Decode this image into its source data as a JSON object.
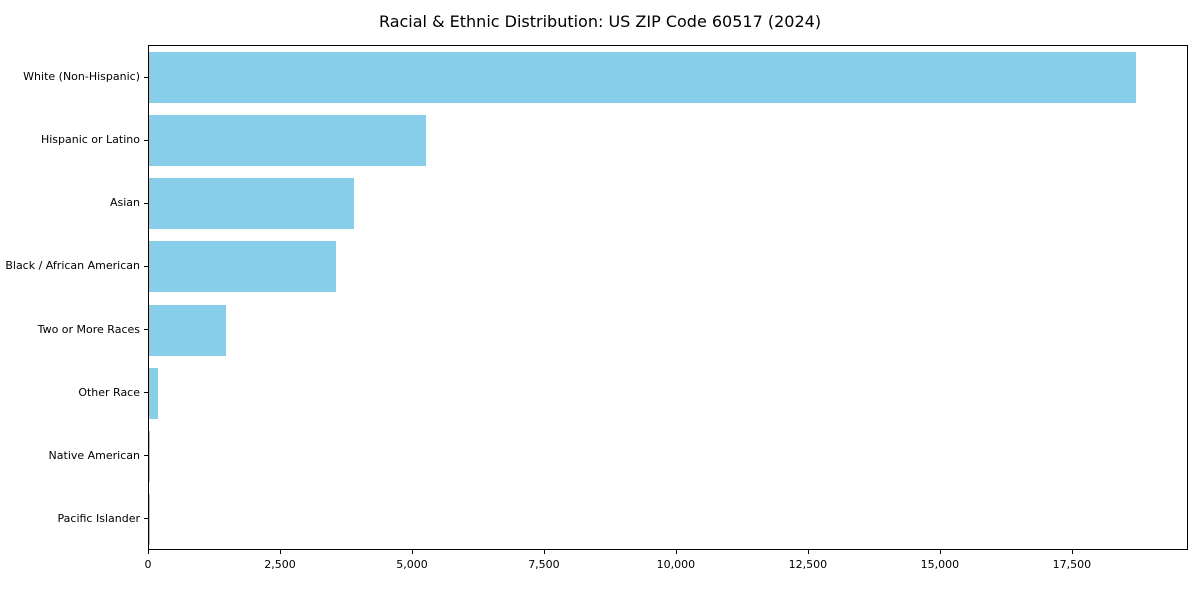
{
  "title": "Racial & Ethnic Distribution: US ZIP Code 60517 (2024)",
  "chart_data": {
    "type": "bar",
    "orientation": "horizontal",
    "title": "Racial & Ethnic Distribution: US ZIP Code 60517 (2024)",
    "categories": [
      "White (Non-Hispanic)",
      "Hispanic or Latino",
      "Asian",
      "Black / African American",
      "Two or More Races",
      "Other Race",
      "Native American",
      "Pacific Islander"
    ],
    "values": [
      18700,
      5250,
      3880,
      3540,
      1450,
      170,
      15,
      5
    ],
    "xlabel": "",
    "ylabel": "",
    "xlim": [
      0,
      19700
    ],
    "xticks": [
      0,
      2500,
      5000,
      7500,
      10000,
      12500,
      15000,
      17500
    ],
    "xtick_labels": [
      "0",
      "2,500",
      "5,000",
      "7,500",
      "10,000",
      "12,500",
      "15,000",
      "17,500"
    ],
    "bar_color": "#87CEEB",
    "grid": false,
    "legend": false
  }
}
